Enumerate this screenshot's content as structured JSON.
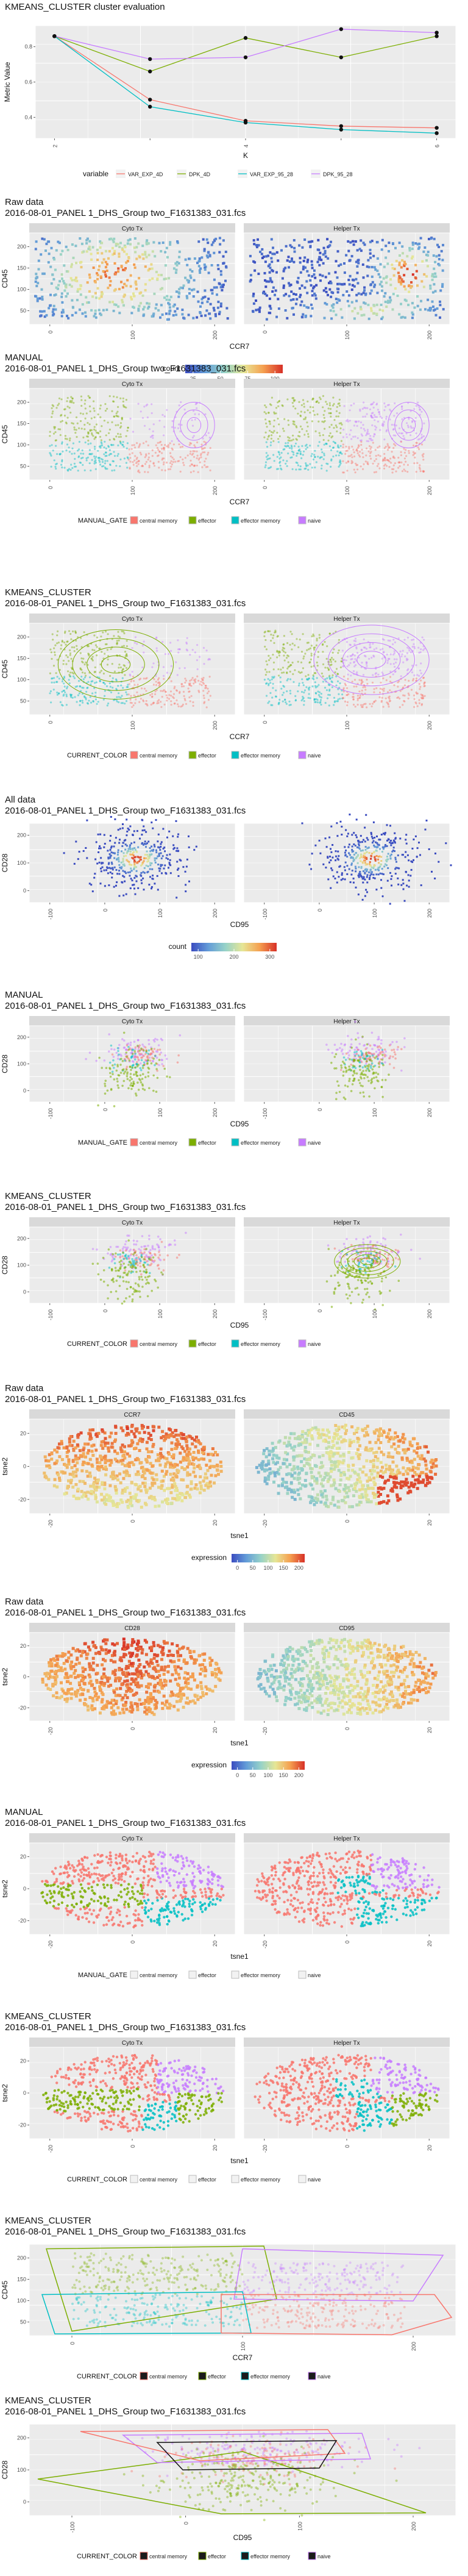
{
  "page": {
    "title": "KMEANS_CLUSTER cluster evaluation — flow cytometry report"
  },
  "colors": {
    "panel_bg": "#ebebeb",
    "strip_bg": "#d9d9d9",
    "grid": "#ffffff",
    "central_memory": "#f8766d",
    "effector": "#7cae00",
    "effector_memory": "#00bfc4",
    "naive": "#c77cff",
    "density_low": "#3b4cc0",
    "density_high": "#d73027"
  },
  "common": {
    "filename_line": "2016-08-01_PANEL 1_DHS_Group two_F1631383_031.fcs",
    "cyto": "Cyto Tx",
    "helper": "Helper Tx",
    "gates": [
      "central memory",
      "effector",
      "effector memory",
      "naive"
    ]
  },
  "charts": [
    {
      "id": "eval",
      "type": "line",
      "title_l1": "KMEANS_CLUSTER cluster evaluation",
      "title_l2": "",
      "xlabel": "K",
      "ylabel": "Metric Value",
      "x": [
        2,
        3,
        4,
        5,
        6
      ],
      "xticks": [
        "2",
        "",
        "4",
        "",
        "6"
      ],
      "yticks": [
        "0.4",
        "0.6",
        "0.8"
      ],
      "ylim": [
        0.28,
        0.92
      ],
      "legend_title": "variable",
      "series": [
        {
          "name": "VAR_EXP_4D",
          "color": "#f8766d",
          "values": [
            0.86,
            0.5,
            0.38,
            0.35,
            0.34
          ]
        },
        {
          "name": "DPK_4D",
          "color": "#7cae00",
          "values": [
            0.86,
            0.66,
            0.85,
            0.74,
            0.86
          ]
        },
        {
          "name": "VAR_EXP_95_28",
          "color": "#00bfc4",
          "values": [
            0.86,
            0.46,
            0.37,
            0.33,
            0.31
          ]
        },
        {
          "name": "DPK_95_28",
          "color": "#c77cff",
          "values": [
            0.86,
            0.73,
            0.74,
            0.9,
            0.88
          ]
        }
      ]
    },
    {
      "id": "raw1",
      "type": "density",
      "title_l1": "Raw data",
      "xlabel": "CCR7",
      "ylabel": "CD45",
      "xticks": [
        "0",
        "100",
        "200"
      ],
      "yticks": [
        "50",
        "100",
        "150",
        "200"
      ],
      "strips": [
        "Cyto Tx",
        "Helper Tx"
      ],
      "legend_title": "count",
      "legend_ticks": [
        "25",
        "50",
        "75",
        "100"
      ]
    },
    {
      "id": "manual1",
      "type": "gates",
      "title_l1": "MANUAL",
      "xlabel": "CCR7",
      "ylabel": "CD45",
      "xticks": [
        "0",
        "100",
        "200"
      ],
      "yticks": [
        "50",
        "100",
        "150",
        "200"
      ],
      "strips": [
        "Cyto Tx",
        "Helper Tx"
      ],
      "legend_title": "MANUAL_GATE"
    },
    {
      "id": "km1",
      "type": "gates",
      "title_l1": "KMEANS_CLUSTER",
      "xlabel": "CCR7",
      "ylabel": "CD45",
      "xticks": [
        "0",
        "100",
        "200"
      ],
      "yticks": [
        "50",
        "100",
        "150",
        "200"
      ],
      "strips": [
        "Cyto Tx",
        "Helper Tx"
      ],
      "legend_title": "CURRENT_COLOR"
    },
    {
      "id": "raw2",
      "type": "density",
      "title_l1": "All data",
      "xlabel": "CD95",
      "ylabel": "CD28",
      "xticks": [
        "-100",
        "0",
        "100",
        "200"
      ],
      "yticks": [
        "0",
        "100",
        "200"
      ],
      "strips": [],
      "legend_title": "count",
      "legend_ticks": [
        "100",
        "200",
        "300"
      ]
    },
    {
      "id": "manual2",
      "type": "gates",
      "title_l1": "MANUAL",
      "xlabel": "CD95",
      "ylabel": "CD28",
      "xticks": [
        "-100",
        "0",
        "100",
        "200"
      ],
      "yticks": [
        "0",
        "100",
        "200"
      ],
      "strips": [
        "Cyto Tx",
        "Helper Tx"
      ],
      "legend_title": "MANUAL_GATE"
    },
    {
      "id": "km2",
      "type": "gates",
      "title_l1": "KMEANS_CLUSTER",
      "xlabel": "CD95",
      "ylabel": "CD28",
      "xticks": [
        "-100",
        "0",
        "100",
        "200"
      ],
      "yticks": [
        "0",
        "100",
        "200"
      ],
      "strips": [
        "Cyto Tx",
        "Helper Tx"
      ],
      "legend_title": "CURRENT_COLOR"
    },
    {
      "id": "tsne1",
      "type": "tsne_expr",
      "title_l1": "Raw data",
      "xlabel": "tsne1",
      "ylabel": "tsne2",
      "xticks": [
        "-20",
        "0",
        "20"
      ],
      "yticks": [
        "-20",
        "0",
        "20"
      ],
      "strips": [
        "CCR7",
        "CD45"
      ],
      "legend_title": "expression",
      "legend_ticks": [
        "0",
        "50",
        "100",
        "150",
        "200"
      ]
    },
    {
      "id": "tsne2",
      "type": "tsne_expr",
      "title_l1": "Raw data",
      "xlabel": "tsne1",
      "ylabel": "tsne2",
      "xticks": [
        "-20",
        "0",
        "20"
      ],
      "yticks": [
        "-20",
        "0",
        "20"
      ],
      "strips": [
        "CD28",
        "CD95"
      ],
      "legend_title": "expression",
      "legend_ticks": [
        "0",
        "50",
        "100",
        "150",
        "200"
      ]
    },
    {
      "id": "tsne3",
      "type": "tsne_gates",
      "title_l1": "MANUAL",
      "xlabel": "tsne1",
      "ylabel": "tsne2",
      "xticks": [
        "-20",
        "0",
        "20"
      ],
      "yticks": [
        "-20",
        "0",
        "20"
      ],
      "strips": [
        "Cyto Tx",
        "Helper Tx"
      ],
      "legend_title": "MANUAL_GATE"
    },
    {
      "id": "tsne4",
      "type": "tsne_gates",
      "title_l1": "KMEANS_CLUSTER",
      "xlabel": "tsne1",
      "ylabel": "tsne2",
      "xticks": [
        "-20",
        "0",
        "20"
      ],
      "yticks": [
        "-20",
        "0",
        "20"
      ],
      "strips": [
        "Cyto Tx",
        "Helper Tx"
      ],
      "legend_title": "CURRENT_COLOR"
    },
    {
      "id": "hull1",
      "type": "hull",
      "title_l1": "KMEANS_CLUSTER",
      "xlabel": "CCR7",
      "ylabel": "CD45",
      "xticks": [
        "0",
        "100",
        "200"
      ],
      "yticks": [
        "50",
        "100",
        "150",
        "200"
      ],
      "strips": [],
      "legend_title": "CURRENT_COLOR"
    },
    {
      "id": "hull2",
      "type": "hull",
      "title_l1": "KMEANS_CLUSTER",
      "xlabel": "CD95",
      "ylabel": "CD28",
      "xticks": [
        "-100",
        "0",
        "100",
        "200"
      ],
      "yticks": [
        "0",
        "100",
        "200"
      ],
      "strips": [],
      "legend_title": "CURRENT_COLOR"
    }
  ],
  "chart_data": {
    "type": "line",
    "title": "KMEANS_CLUSTER cluster evaluation",
    "xlabel": "K",
    "ylabel": "Metric Value",
    "x": [
      2,
      3,
      4,
      5,
      6
    ],
    "series": [
      {
        "name": "VAR_EXP_4D",
        "values": [
          0.86,
          0.5,
          0.38,
          0.35,
          0.34
        ]
      },
      {
        "name": "DPK_4D",
        "values": [
          0.86,
          0.66,
          0.85,
          0.74,
          0.86
        ]
      },
      {
        "name": "VAR_EXP_95_28",
        "values": [
          0.86,
          0.46,
          0.37,
          0.33,
          0.31
        ]
      },
      {
        "name": "DPK_95_28",
        "values": [
          0.86,
          0.73,
          0.74,
          0.9,
          0.88
        ]
      }
    ],
    "grid": true,
    "legend": "bottom"
  }
}
